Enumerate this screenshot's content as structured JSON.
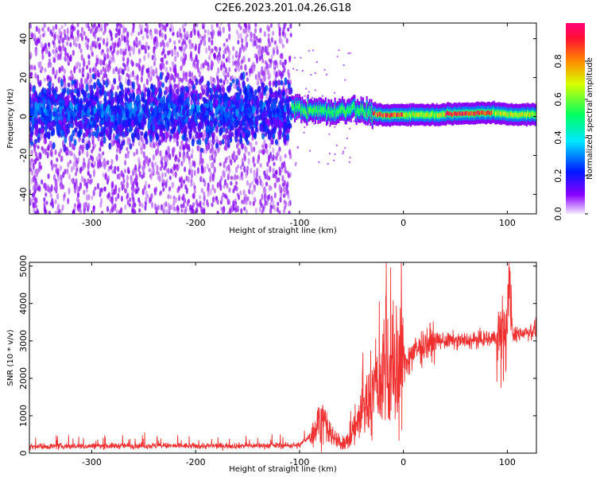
{
  "title": "C2E6.2023.201.04.26.G18",
  "colors": {
    "snr_line": "#f03030",
    "spectrum_low": "#d8b0f4",
    "spectrum_mid": "#5a00ff",
    "spectrum_high": "#ff1f1f",
    "colorbar_stops": [
      "#f4e8ff",
      "#8a00ff",
      "#0018ff",
      "#00e8ff",
      "#00ff60",
      "#d8ff00",
      "#ff8a00",
      "#ff1030",
      "#ff007a"
    ]
  },
  "chart_data": [
    {
      "type": "heatmap",
      "title": "",
      "xlabel": "Height of straight line (km)",
      "ylabel": "Frequency (Hz)",
      "xlim": [
        -360,
        128
      ],
      "ylim": [
        -50,
        48
      ],
      "xticks": [
        -300,
        -200,
        -100,
        0,
        100
      ],
      "yticks": [
        40,
        20,
        0,
        -20,
        -40
      ],
      "colorbar": {
        "label": "Normalized spectral amplitude",
        "range": [
          0.0,
          1.0
        ],
        "ticks": [
          0.0,
          0.2,
          0.4,
          0.6,
          0.8
        ]
      },
      "regions": [
        {
          "x": [
            -360,
            -108
          ],
          "description_value": "noisy scattered energy, |f| up to 48 Hz, amplitude 0.05-0.35"
        },
        {
          "x": [
            -108,
            128
          ],
          "description_value": "narrow signal band near 0-5 Hz, amplitude 0.4-1.0"
        }
      ],
      "signal_ridge": {
        "x": [
          -108,
          -90,
          -70,
          -50,
          -35,
          -20,
          0,
          30,
          60,
          85,
          100,
          128
        ],
        "y": [
          5,
          3,
          2,
          4,
          2,
          0.5,
          1,
          1,
          1.5,
          2,
          1,
          1
        ]
      }
    },
    {
      "type": "line",
      "title": "",
      "xlabel": "Height of straight line (km)",
      "ylabel": "SNR (10 * v/v)",
      "xlim": [
        -360,
        128
      ],
      "ylim": [
        0,
        5100
      ],
      "xticks": [
        -300,
        -200,
        -100,
        0,
        100
      ],
      "yticks": [
        0,
        1000,
        2000,
        3000,
        4000,
        5000
      ],
      "series": [
        {
          "x": [
            -360,
            -300,
            -250,
            -200,
            -150,
            -100,
            -85,
            -80,
            -75,
            -70,
            -65,
            -60,
            -55,
            -50,
            -45,
            -40,
            -35,
            -30,
            -25,
            -20,
            -17,
            -15,
            -10,
            -5,
            0,
            10,
            20,
            30,
            40,
            60,
            80,
            95,
            100,
            102,
            105,
            110,
            128
          ],
          "y": [
            180,
            190,
            200,
            190,
            200,
            210,
            600,
            900,
            700,
            500,
            350,
            250,
            300,
            500,
            800,
            1000,
            1300,
            1600,
            1800,
            2000,
            3000,
            2100,
            2100,
            2200,
            2400,
            2700,
            2900,
            3000,
            3000,
            3000,
            3050,
            3100,
            3200,
            5000,
            3100,
            3200,
            3300
          ]
        }
      ]
    }
  ]
}
